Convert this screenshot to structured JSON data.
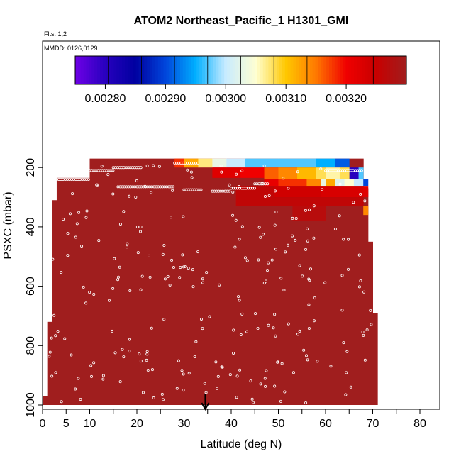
{
  "chart_data": {
    "type": "heatmap",
    "title": "ATOM2 Northeast_Pacific_1 H1301_GMI",
    "flights_label": "Flts: 1,2",
    "dates_label": "MMDD: 0126,0129",
    "xlabel": "Latitude (deg N)",
    "ylabel": "PSXC (mbar)",
    "xlim": [
      0,
      85
    ],
    "ylim": [
      1000,
      50
    ],
    "y_reversed": true,
    "x_ticks": [
      0,
      5,
      10,
      20,
      30,
      40,
      50,
      60,
      70,
      80
    ],
    "y_ticks": [
      200,
      400,
      600,
      800,
      1000
    ],
    "colorbar": {
      "range": [
        0.00275,
        0.0033
      ],
      "tick_values": [
        0.0028,
        0.0029,
        0.003,
        0.0031,
        0.0032
      ],
      "tick_labels": [
        "0.00280",
        "0.00290",
        "0.00300",
        "0.00310",
        "0.00320"
      ]
    },
    "marker_arrow_latitude": 34.5,
    "background_value": 0.0033,
    "profile_coverage": [
      {
        "lat": [
          0,
          1
        ],
        "p": [
          970,
          1000
        ]
      },
      {
        "lat": [
          1,
          2
        ],
        "p": [
          720,
          1000
        ]
      },
      {
        "lat": [
          2,
          3
        ],
        "p": [
          310,
          1000
        ]
      },
      {
        "lat": [
          3,
          10
        ],
        "p": [
          235,
          1000
        ]
      },
      {
        "lat": [
          10,
          68
        ],
        "p": [
          170,
          1000
        ]
      },
      {
        "lat": [
          68,
          69
        ],
        "p": [
          270,
          1000
        ]
      },
      {
        "lat": [
          69,
          70
        ],
        "p": [
          450,
          1000
        ]
      },
      {
        "lat": [
          70,
          71
        ],
        "p": [
          690,
          1000
        ]
      }
    ],
    "features": [
      {
        "lat": [
          28,
          30
        ],
        "p": [
          170,
          200
        ],
        "value": 0.00318
      },
      {
        "lat": [
          30,
          33
        ],
        "p": [
          170,
          200
        ],
        "value": 0.00312
      },
      {
        "lat": [
          33,
          36
        ],
        "p": [
          170,
          200
        ],
        "value": 0.00307
      },
      {
        "lat": [
          36,
          39
        ],
        "p": [
          170,
          200
        ],
        "value": 0.00303
      },
      {
        "lat": [
          39,
          43
        ],
        "p": [
          170,
          200
        ],
        "value": 0.003
      },
      {
        "lat": [
          43,
          50
        ],
        "p": [
          170,
          200
        ],
        "value": 0.00297
      },
      {
        "lat": [
          50,
          58
        ],
        "p": [
          170,
          200
        ],
        "value": 0.00297
      },
      {
        "lat": [
          58,
          62
        ],
        "p": [
          170,
          200
        ],
        "value": 0.00295
      },
      {
        "lat": [
          62,
          65
        ],
        "p": [
          170,
          200
        ],
        "value": 0.00291
      },
      {
        "lat": [
          65,
          67
        ],
        "p": [
          200,
          240
        ],
        "value": 0.0028
      },
      {
        "lat": [
          67,
          68
        ],
        "p": [
          200,
          240
        ],
        "value": 0.00297
      },
      {
        "lat": [
          36,
          42
        ],
        "p": [
          200,
          235
        ],
        "value": 0.00322
      },
      {
        "lat": [
          42,
          47
        ],
        "p": [
          200,
          235
        ],
        "value": 0.0032
      },
      {
        "lat": [
          47,
          50
        ],
        "p": [
          200,
          240
        ],
        "value": 0.00316
      },
      {
        "lat": [
          50,
          54
        ],
        "p": [
          200,
          240
        ],
        "value": 0.00314
      },
      {
        "lat": [
          54,
          58
        ],
        "p": [
          200,
          240
        ],
        "value": 0.00311
      },
      {
        "lat": [
          58,
          60
        ],
        "p": [
          200,
          240
        ],
        "value": 0.00308
      },
      {
        "lat": [
          60,
          63
        ],
        "p": [
          200,
          240
        ],
        "value": 0.00306
      },
      {
        "lat": [
          63,
          65
        ],
        "p": [
          200,
          240
        ],
        "value": 0.00308
      },
      {
        "lat": [
          47,
          50
        ],
        "p": [
          240,
          262
        ],
        "value": 0.00321
      },
      {
        "lat": [
          50,
          56
        ],
        "p": [
          240,
          262
        ],
        "value": 0.00318
      },
      {
        "lat": [
          56,
          59
        ],
        "p": [
          240,
          262
        ],
        "value": 0.00314
      },
      {
        "lat": [
          59,
          60
        ],
        "p": [
          240,
          262
        ],
        "value": 0.00303
      },
      {
        "lat": [
          60,
          62
        ],
        "p": [
          240,
          262
        ],
        "value": 0.00312
      },
      {
        "lat": [
          62,
          64
        ],
        "p": [
          240,
          262
        ],
        "value": 0.00302
      },
      {
        "lat": [
          64,
          66
        ],
        "p": [
          240,
          262
        ],
        "value": 0.00305
      },
      {
        "lat": [
          66,
          68
        ],
        "p": [
          240,
          262
        ],
        "value": 0.003
      },
      {
        "lat": [
          68,
          69
        ],
        "p": [
          240,
          262
        ],
        "value": 0.0029
      },
      {
        "lat": [
          49,
          59
        ],
        "p": [
          262,
          300
        ],
        "value": 0.00324
      },
      {
        "lat": [
          59,
          68
        ],
        "p": [
          262,
          300
        ],
        "value": 0.00323
      },
      {
        "lat": [
          68,
          69
        ],
        "p": [
          262,
          300
        ],
        "value": 0.00322
      },
      {
        "lat": [
          41,
          49
        ],
        "p": [
          262,
          330
        ],
        "value": 0.00326
      },
      {
        "lat": [
          48,
          68
        ],
        "p": [
          300,
          330
        ],
        "value": 0.00326
      },
      {
        "lat": [
          68,
          69
        ],
        "p": [
          330,
          360
        ],
        "value": 0.00314
      },
      {
        "lat": [
          53,
          60
        ],
        "p": [
          330,
          380
        ],
        "value": 0.00327
      }
    ]
  }
}
